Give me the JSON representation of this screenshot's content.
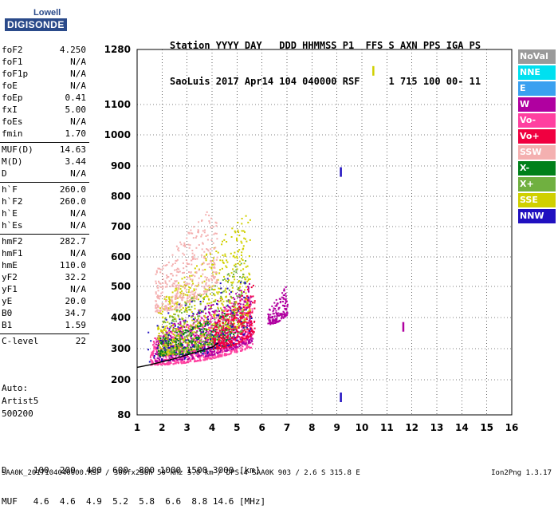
{
  "logo": {
    "line1": "Lowell",
    "line2": "DIGISONDE"
  },
  "header": {
    "line1": "Station YYYY DAY   DDD HHMMSS P1  FFS S AXN PPS IGA PS",
    "line2": "SaoLuis 2017 Apr14 104 040000 RSF     1 715 100 00- 11"
  },
  "params": [
    [
      {
        "k": "foF2",
        "v": "4.250"
      },
      {
        "k": "foF1",
        "v": "N/A"
      },
      {
        "k": "foF1p",
        "v": "N/A"
      },
      {
        "k": "foE",
        "v": "N/A"
      },
      {
        "k": "foEp",
        "v": "0.41"
      },
      {
        "k": "fxI",
        "v": "5.00"
      },
      {
        "k": "foEs",
        "v": "N/A"
      },
      {
        "k": "fmin",
        "v": "1.70"
      }
    ],
    [
      {
        "k": "MUF(D)",
        "v": "14.63"
      },
      {
        "k": "M(D)",
        "v": "3.44"
      },
      {
        "k": "D",
        "v": "N/A"
      }
    ],
    [
      {
        "k": "h`F",
        "v": "260.0"
      },
      {
        "k": "h`F2",
        "v": "260.0"
      },
      {
        "k": "h`E",
        "v": "N/A"
      },
      {
        "k": "h`Es",
        "v": "N/A"
      }
    ],
    [
      {
        "k": "hmF2",
        "v": "282.7"
      },
      {
        "k": "hmF1",
        "v": "N/A"
      },
      {
        "k": "hmE",
        "v": "110.0"
      },
      {
        "k": "yF2",
        "v": "32.2"
      },
      {
        "k": "yF1",
        "v": "N/A"
      },
      {
        "k": "yE",
        "v": "20.0"
      },
      {
        "k": "B0",
        "v": "34.7"
      },
      {
        "k": "B1",
        "v": "1.59"
      }
    ],
    [
      {
        "k": "C-level",
        "v": "22"
      }
    ]
  ],
  "auto": {
    "l1": "Auto:",
    "l2": "Artist5",
    "l3": "500200"
  },
  "bottom": {
    "l1": "D     100  200  400  600  800 1000 1500 3000 [km]",
    "l2": "MUF   4.6  4.6  4.9  5.2  5.8  6.6  8.8 14.6 [MHz]"
  },
  "footer": {
    "left": "SAA0K_2017104040000.RSF / 300fx256h 50 kHz 5.0 km / DPS-4 SAA0K 903 / 2.6 S 315.8 E",
    "right": "Ion2Png 1.3.17"
  },
  "legend": [
    {
      "label": "NoVal",
      "color": "#9a9a9a"
    },
    {
      "label": "NNE",
      "color": "#00e0f0"
    },
    {
      "label": "E",
      "color": "#3aa0f0"
    },
    {
      "label": "W",
      "color": "#b000a0"
    },
    {
      "label": "Vo-",
      "color": "#ff40a0"
    },
    {
      "label": "Vo+",
      "color": "#f00040"
    },
    {
      "label": "SSW",
      "color": "#f4b0b0"
    },
    {
      "label": "X-",
      "color": "#00801a"
    },
    {
      "label": "X+",
      "color": "#70b040"
    },
    {
      "label": "SSE",
      "color": "#d0d000"
    },
    {
      "label": "NNW",
      "color": "#2010c0"
    }
  ],
  "chart_data": {
    "type": "scatter",
    "xlim": [
      1,
      16
    ],
    "ylim_km": [
      80,
      1280
    ],
    "xticks": [
      "1",
      "2",
      "3",
      "4",
      "5",
      "6",
      "7",
      "8",
      "9",
      "10",
      "11",
      "12",
      "13",
      "14",
      "15",
      "16"
    ],
    "yticks": [
      "80",
      "200",
      "300",
      "400",
      "500",
      "600",
      "700",
      "800",
      "900",
      "1000",
      "1100",
      "1280"
    ],
    "trace": {
      "f": [
        1.0,
        1.5,
        2.0,
        2.5,
        3.0,
        3.5,
        4.0,
        4.25
      ],
      "h": [
        240,
        248,
        258,
        268,
        280,
        292,
        305,
        318
      ]
    },
    "clusters": [
      {
        "color": "#ff40a0",
        "f": [
          1.5,
          5.6
        ],
        "h": [
          250,
          480
        ],
        "n": 900
      },
      {
        "color": "#b000a0",
        "f": [
          1.7,
          5.6
        ],
        "h": [
          260,
          520
        ],
        "n": 600
      },
      {
        "color": "#d0d000",
        "f": [
          1.8,
          5.5
        ],
        "h": [
          280,
          760
        ],
        "n": 700
      },
      {
        "color": "#00801a",
        "f": [
          1.8,
          4.9
        ],
        "h": [
          280,
          430
        ],
        "n": 250
      },
      {
        "color": "#f4b0b0",
        "f": [
          1.7,
          4.2
        ],
        "h": [
          420,
          800
        ],
        "n": 400
      },
      {
        "color": "#70b040",
        "f": [
          2.0,
          5.4
        ],
        "h": [
          290,
          600
        ],
        "n": 250
      },
      {
        "color": "#f00040",
        "f": [
          4.0,
          5.7
        ],
        "h": [
          300,
          520
        ],
        "n": 300
      },
      {
        "color": "#b000a0",
        "f": [
          6.2,
          7.0
        ],
        "h": [
          380,
          510
        ],
        "n": 160
      },
      {
        "color": "#2010c0",
        "f": [
          1.4,
          5.6
        ],
        "h": [
          260,
          600
        ],
        "n": 120
      }
    ],
    "isolated": [
      {
        "f": 9.15,
        "h": 880,
        "color": "#2010c0"
      },
      {
        "f": 9.15,
        "h": 140,
        "color": "#2010c0"
      },
      {
        "f": 11.65,
        "h": 370,
        "color": "#b000a0"
      },
      {
        "f": 10.45,
        "h": 1210,
        "color": "#d0d000"
      }
    ]
  }
}
